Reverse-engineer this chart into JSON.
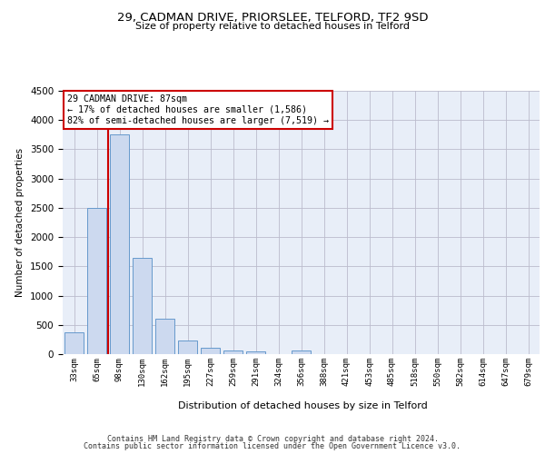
{
  "title": "29, CADMAN DRIVE, PRIORSLEE, TELFORD, TF2 9SD",
  "subtitle": "Size of property relative to detached houses in Telford",
  "xlabel": "Distribution of detached houses by size in Telford",
  "ylabel": "Number of detached properties",
  "categories": [
    "33sqm",
    "65sqm",
    "98sqm",
    "130sqm",
    "162sqm",
    "195sqm",
    "227sqm",
    "259sqm",
    "291sqm",
    "324sqm",
    "356sqm",
    "388sqm",
    "421sqm",
    "453sqm",
    "485sqm",
    "518sqm",
    "550sqm",
    "582sqm",
    "614sqm",
    "647sqm",
    "679sqm"
  ],
  "values": [
    370,
    2500,
    3750,
    1640,
    600,
    230,
    105,
    60,
    45,
    0,
    60,
    0,
    0,
    0,
    0,
    0,
    0,
    0,
    0,
    0,
    0
  ],
  "bar_color": "#ccd9ef",
  "bar_edge_color": "#6699cc",
  "grid_color": "#bbbbcc",
  "bg_color": "#e8eef8",
  "red_line_color": "#cc0000",
  "annotation_text": "29 CADMAN DRIVE: 87sqm\n← 17% of detached houses are smaller (1,586)\n82% of semi-detached houses are larger (7,519) →",
  "annotation_box_color": "#ffffff",
  "annotation_box_edge": "#cc0000",
  "ylim": [
    0,
    4500
  ],
  "footer_line1": "Contains HM Land Registry data © Crown copyright and database right 2024.",
  "footer_line2": "Contains public sector information licensed under the Open Government Licence v3.0."
}
